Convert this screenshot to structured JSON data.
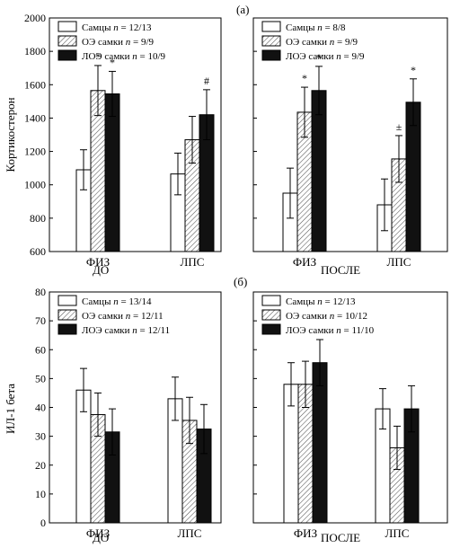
{
  "chart_data": [
    {
      "type": "bar",
      "panel": "top-left",
      "ylabel": "Кортикостерон",
      "ylim": [
        600,
        2000
      ],
      "yticks": [
        600,
        800,
        1000,
        1200,
        1400,
        1600,
        1800,
        2000
      ],
      "categories": [
        "ФИЗ",
        "ЛПС"
      ],
      "group_label": "ДО",
      "legend": {
        "placement": "top-left"
      },
      "series": [
        {
          "name": "Самцы",
          "legend_n": "12/13",
          "pattern": "white",
          "values": [
            1090,
            1065
          ],
          "errors": [
            120,
            125
          ],
          "marks": [
            "",
            ""
          ]
        },
        {
          "name": "ОЭ самки",
          "legend_n": "9/9",
          "pattern": "hatch",
          "values": [
            1565,
            1270
          ],
          "errors": [
            150,
            140
          ],
          "marks": [
            "*",
            ""
          ]
        },
        {
          "name": "ЛОЭ самки",
          "legend_n": "10/9",
          "pattern": "black",
          "values": [
            1545,
            1420
          ],
          "errors": [
            135,
            150
          ],
          "marks": [
            "*",
            "#"
          ]
        }
      ]
    },
    {
      "type": "bar",
      "panel": "top-right",
      "panel_label": "(а)",
      "ylim": [
        600,
        2000
      ],
      "categories": [
        "ФИЗ",
        "ЛПС"
      ],
      "group_label": "ПОСЛЕ",
      "legend": {
        "placement": "top-left"
      },
      "series": [
        {
          "name": "Самцы",
          "legend_n": "8/8",
          "pattern": "white",
          "values": [
            950,
            880
          ],
          "errors": [
            150,
            155
          ],
          "marks": [
            "",
            ""
          ]
        },
        {
          "name": "ОЭ самки",
          "legend_n": "9/9",
          "pattern": "hatch",
          "values": [
            1435,
            1155
          ],
          "errors": [
            150,
            140
          ],
          "marks": [
            "*",
            "±"
          ]
        },
        {
          "name": "ЛОЭ самки",
          "legend_n": "9/9",
          "pattern": "black",
          "values": [
            1565,
            1495
          ],
          "errors": [
            145,
            140
          ],
          "marks": [
            "*",
            "*"
          ]
        }
      ]
    },
    {
      "type": "bar",
      "panel": "bottom-left",
      "ylabel": "ИЛ-1 бета",
      "ylim": [
        0,
        80
      ],
      "yticks": [
        0,
        10,
        20,
        30,
        40,
        50,
        60,
        70,
        80
      ],
      "categories": [
        "ФИЗ",
        "ЛПС"
      ],
      "group_label": "ДО",
      "legend": {
        "placement": "top-left"
      },
      "series": [
        {
          "name": "Самцы",
          "legend_n": "13/14",
          "pattern": "white",
          "values": [
            46,
            43
          ],
          "errors": [
            7.5,
            7.5
          ],
          "marks": [
            "",
            ""
          ]
        },
        {
          "name": "ОЭ самки",
          "legend_n": "12/11",
          "pattern": "hatch",
          "values": [
            37.5,
            35.5
          ],
          "errors": [
            7.5,
            8.0
          ],
          "marks": [
            "",
            ""
          ]
        },
        {
          "name": "ЛОЭ самки",
          "legend_n": "12/11",
          "pattern": "black",
          "values": [
            31.5,
            32.5
          ],
          "errors": [
            8.0,
            8.5
          ],
          "marks": [
            "",
            ""
          ]
        }
      ]
    },
    {
      "type": "bar",
      "panel": "bottom-right",
      "panel_label": "(б)",
      "ylim": [
        0,
        80
      ],
      "categories": [
        "ФИЗ",
        "ЛПС"
      ],
      "group_label": "ПОСЛЕ",
      "legend": {
        "placement": "top-left"
      },
      "series": [
        {
          "name": "Самцы",
          "legend_n": "12/13",
          "pattern": "white",
          "values": [
            48,
            39.5
          ],
          "errors": [
            7.5,
            7.0
          ],
          "marks": [
            "",
            ""
          ]
        },
        {
          "name": "ОЭ самки",
          "legend_n": "10/12",
          "pattern": "hatch",
          "values": [
            48,
            26
          ],
          "errors": [
            8.0,
            7.5
          ],
          "marks": [
            "",
            ""
          ]
        },
        {
          "name": "ЛОЭ самки",
          "legend_n": "11/10",
          "pattern": "black",
          "values": [
            55.5,
            39.5
          ],
          "errors": [
            8.0,
            8.0
          ],
          "marks": [
            "",
            ""
          ]
        }
      ]
    }
  ]
}
